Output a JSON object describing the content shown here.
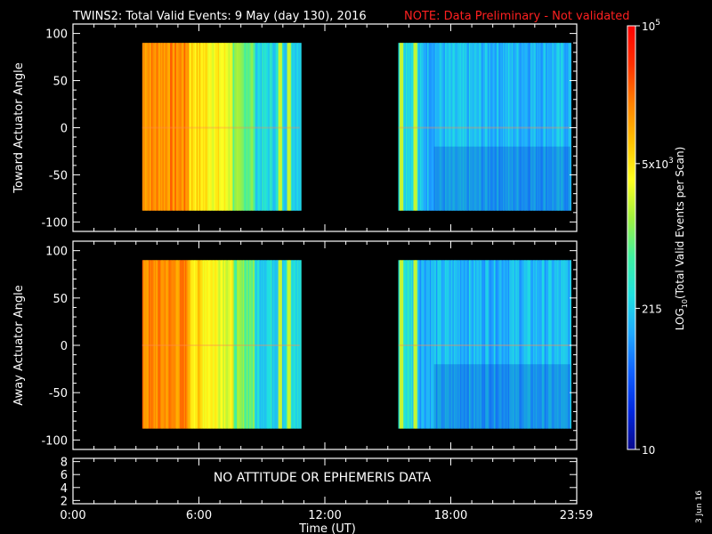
{
  "title": {
    "main": "TWINS2: Total Valid Events:  9 May (day 130), 2016",
    "note": "NOTE: Data Preliminary - Not validated",
    "note_color": "#ff2020"
  },
  "date_stamp": "3 Jun 16",
  "chart_data": [
    {
      "type": "heatmap",
      "name": "toward",
      "ylabel": "Toward Actuator Angle",
      "ylim": [
        -110,
        110
      ],
      "yticks": [
        100,
        50,
        0,
        -50,
        -100
      ],
      "xlim": [
        0,
        24
      ],
      "data_segments": [
        [
          3.3,
          10.8
        ],
        [
          15.5,
          23.7
        ]
      ],
      "data_ylim": [
        -88,
        90
      ]
    },
    {
      "type": "heatmap",
      "name": "away",
      "ylabel": "Away Actuator Angle",
      "ylim": [
        -110,
        110
      ],
      "yticks": [
        100,
        50,
        0,
        -50,
        -100
      ],
      "xlim": [
        0,
        24
      ],
      "data_segments": [
        [
          3.3,
          10.8
        ],
        [
          15.5,
          23.7
        ]
      ],
      "data_ylim": [
        -88,
        90
      ]
    },
    {
      "type": "line",
      "name": "attitude",
      "ylim": [
        1.5,
        8.5
      ],
      "yticks": [
        8,
        6,
        4,
        2
      ],
      "message": "NO ATTITUDE OR EPHEMERIS DATA"
    }
  ],
  "x_axis": {
    "ticks": [
      "0:00",
      "6:00",
      "12:00",
      "18:00",
      "23:59"
    ],
    "tick_hours": [
      0,
      6,
      12,
      18,
      23.98
    ],
    "label": "Time (UT)"
  },
  "colorbar": {
    "label": "LOG10(Total Valid Events per Scan)",
    "label_main": "LOG",
    "label_sub": "10",
    "label_rest": "(Total Valid Events per Scan)",
    "ticks": [
      {
        "value": 100000,
        "base": "10",
        "exp": "5"
      },
      {
        "value": 5000,
        "base": "5x10",
        "exp": "3"
      },
      {
        "value": 215,
        "base": "215",
        "exp": ""
      },
      {
        "value": 10,
        "base": "10",
        "exp": ""
      }
    ],
    "range": [
      10,
      100000
    ],
    "colors": [
      "#0a0a8c",
      "#0028e0",
      "#1060ff",
      "#20a8ff",
      "#20e0e0",
      "#40f0a0",
      "#a0f040",
      "#ffff20",
      "#ffc000",
      "#ff8000",
      "#ff3000",
      "#ff0000"
    ]
  }
}
